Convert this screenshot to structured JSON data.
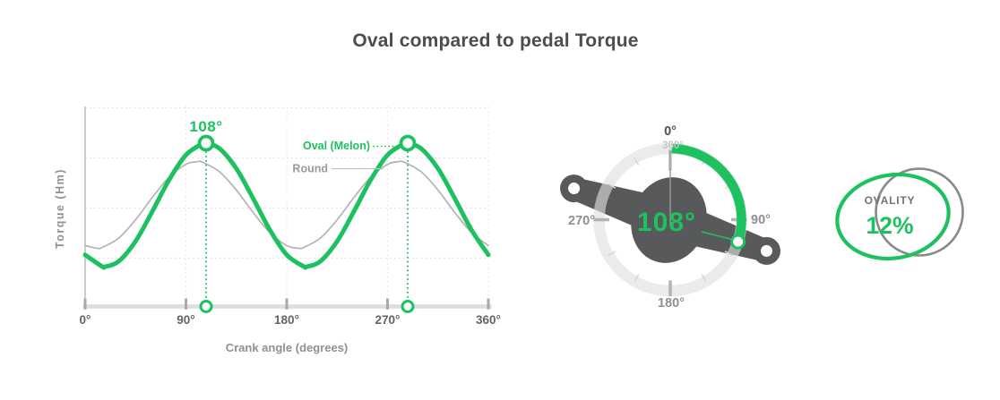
{
  "title": "Oval compared to pedal Torque",
  "colors": {
    "green": "#1ec15f",
    "dark": "#58595b",
    "round_curve": "#b5b2b4",
    "axis_gray": "#dcddde",
    "tick_gray": "#a7a9aa"
  },
  "chart_data": {
    "type": "line",
    "title": "Oval compared to pedal Torque",
    "xlabel": "Crank angle (degrees)",
    "ylabel": "Torque (Hm)",
    "xlim": [
      0,
      360
    ],
    "grid": "dotted",
    "x_ticks": [
      {
        "value": 0,
        "label": "0°"
      },
      {
        "value": 90,
        "label": "90°"
      },
      {
        "value": 180,
        "label": "180°"
      },
      {
        "value": 270,
        "label": "270°"
      },
      {
        "value": 360,
        "label": "360°"
      }
    ],
    "peak_annotation": "108°",
    "peak_angles": [
      108,
      288
    ],
    "legend_position": "inline-right-of-first-peak",
    "series": [
      {
        "name": "Oval (Melon)",
        "color": "#1ec15f",
        "peak_angle": 108,
        "points": [
          [
            0,
            0.515
          ],
          [
            15,
            0.403
          ],
          [
            18,
            0.4
          ],
          [
            30,
            0.452
          ],
          [
            45,
            0.647
          ],
          [
            60,
            0.937
          ],
          [
            75,
            1.244
          ],
          [
            90,
            1.485
          ],
          [
            105,
            1.597
          ],
          [
            108,
            1.6
          ],
          [
            120,
            1.548
          ],
          [
            135,
            1.353
          ],
          [
            150,
            1.063
          ],
          [
            165,
            0.756
          ],
          [
            180,
            0.515
          ],
          [
            195,
            0.403
          ],
          [
            198,
            0.4
          ],
          [
            210,
            0.452
          ],
          [
            225,
            0.647
          ],
          [
            240,
            0.937
          ],
          [
            255,
            1.244
          ],
          [
            270,
            1.485
          ],
          [
            285,
            1.597
          ],
          [
            288,
            1.6
          ],
          [
            300,
            1.548
          ],
          [
            315,
            1.353
          ],
          [
            330,
            1.063
          ],
          [
            345,
            0.756
          ],
          [
            360,
            0.515
          ]
        ]
      },
      {
        "name": "Round",
        "color": "#b5b2b4",
        "peak_angle": 100,
        "points": [
          [
            0,
            0.605
          ],
          [
            10,
            0.58
          ],
          [
            15,
            0.586
          ],
          [
            30,
            0.678
          ],
          [
            45,
            0.856
          ],
          [
            60,
            1.073
          ],
          [
            75,
            1.27
          ],
          [
            90,
            1.395
          ],
          [
            100,
            1.42
          ],
          [
            105,
            1.414
          ],
          [
            120,
            1.322
          ],
          [
            135,
            1.144
          ],
          [
            150,
            0.927
          ],
          [
            165,
            0.73
          ],
          [
            180,
            0.605
          ],
          [
            190,
            0.58
          ],
          [
            195,
            0.586
          ],
          [
            210,
            0.678
          ],
          [
            225,
            0.856
          ],
          [
            240,
            1.073
          ],
          [
            255,
            1.27
          ],
          [
            270,
            1.395
          ],
          [
            280,
            1.42
          ],
          [
            285,
            1.414
          ],
          [
            300,
            1.322
          ],
          [
            315,
            1.144
          ],
          [
            330,
            0.927
          ],
          [
            345,
            0.73
          ],
          [
            360,
            0.605
          ]
        ]
      }
    ]
  },
  "gauge": {
    "value": "108°",
    "value_deg": 108,
    "tick_step_deg": 30,
    "labels": {
      "top": "0°",
      "top_sub": "360°",
      "right": "90°",
      "bottom": "180°",
      "left": "270°"
    }
  },
  "ovality": {
    "label": "OVALITY",
    "value": "12%"
  }
}
